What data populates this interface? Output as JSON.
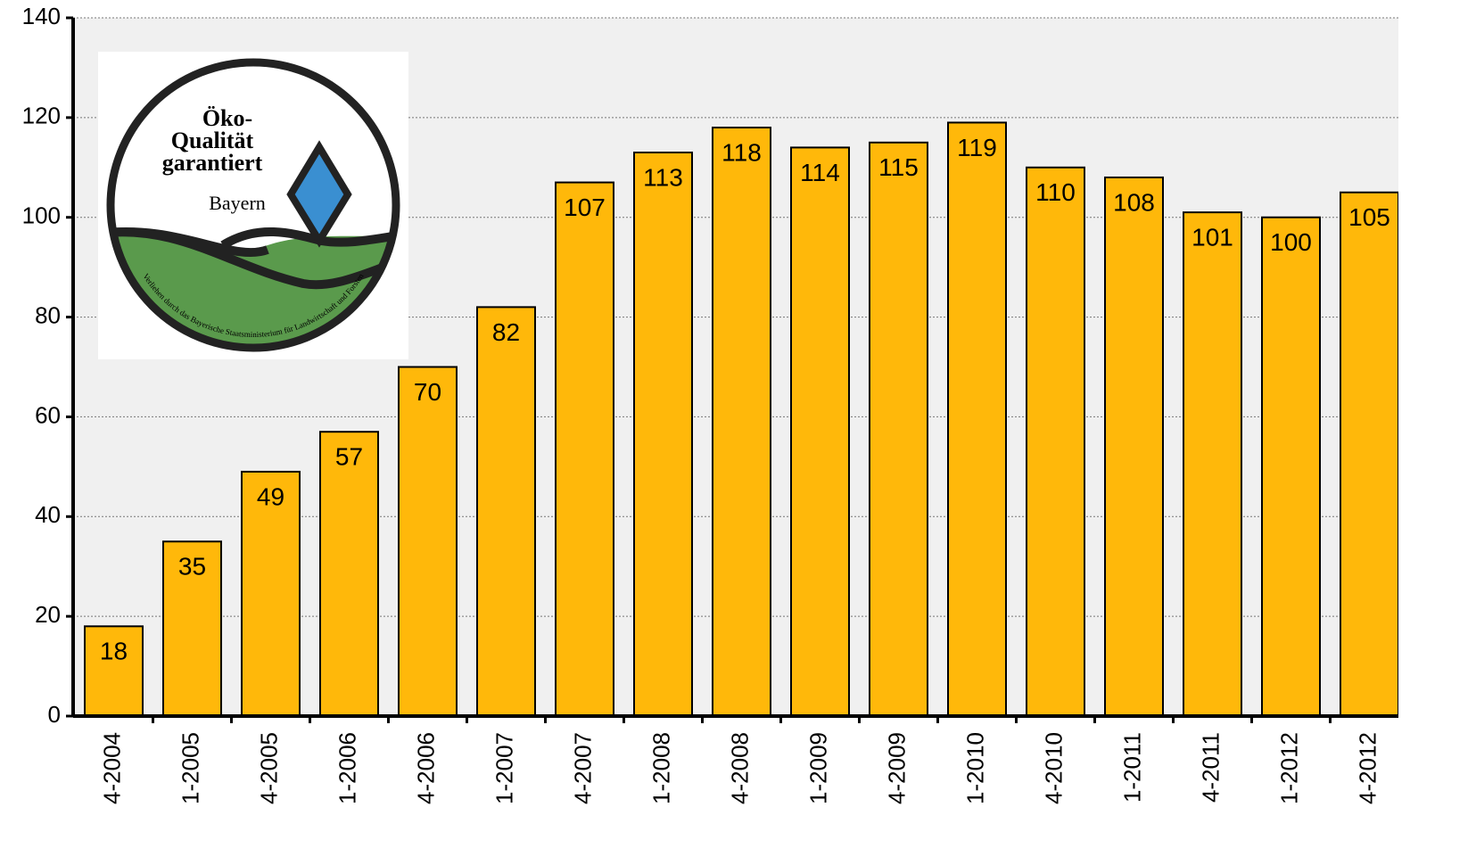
{
  "chart_data": {
    "type": "bar",
    "categories": [
      "4-2004",
      "1-2005",
      "4-2005",
      "1-2006",
      "4-2006",
      "1-2007",
      "4-2007",
      "1-2008",
      "4-2008",
      "1-2009",
      "4-2009",
      "1-2010",
      "4-2010",
      "1-2011",
      "4-2011",
      "1-2012",
      "4-2012"
    ],
    "values": [
      18,
      35,
      49,
      57,
      70,
      82,
      107,
      113,
      118,
      114,
      115,
      119,
      110,
      108,
      101,
      100,
      105
    ],
    "color": "#ffb80a",
    "ylim": [
      0,
      140
    ],
    "yticks": [
      0,
      20,
      40,
      60,
      80,
      100,
      120,
      140
    ],
    "grid": true
  },
  "logo": {
    "title": [
      "Öko-",
      "Qualität",
      "garantiert"
    ],
    "region": "Bayern",
    "ring": "Verliehen durch das Bayerische Staatsministerium für Landwirtschaft und Forsten"
  }
}
